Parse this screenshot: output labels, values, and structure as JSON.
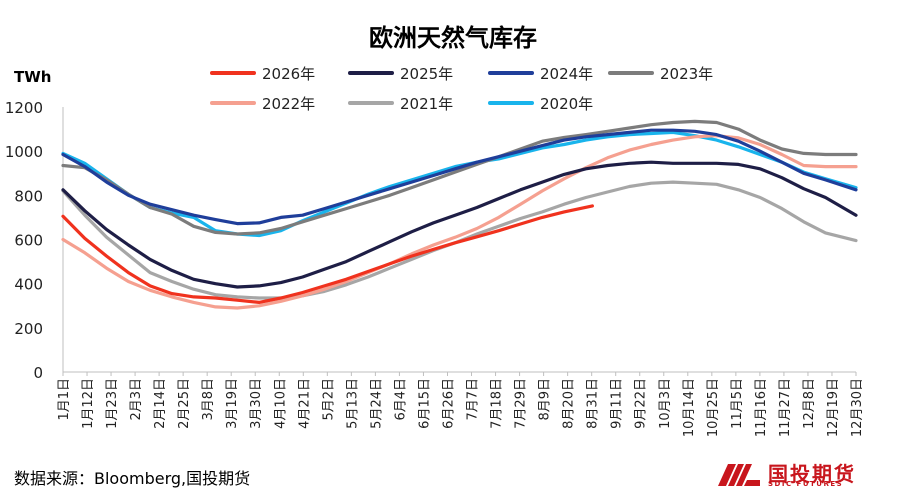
{
  "chart_data": {
    "type": "line",
    "title": "欧洲天然气库存",
    "ylabel": "TWh",
    "ylim": [
      0,
      1200
    ],
    "yticks": [
      0,
      200,
      400,
      600,
      800,
      1000,
      1200
    ],
    "x_tick_labels": [
      "1月1日",
      "1月12日",
      "1月23日",
      "2月3日",
      "2月14日",
      "2月25日",
      "3月8日",
      "3月19日",
      "3月30日",
      "4月10日",
      "4月21日",
      "5月2日",
      "5月13日",
      "5月24日",
      "6月4日",
      "6月15日",
      "6月26日",
      "7月7日",
      "7月18日",
      "7月29日",
      "8月9日",
      "8月20日",
      "8月31日",
      "9月11日",
      "9月22日",
      "10月3日",
      "10月14日",
      "10月25日",
      "11月5日",
      "11月16日",
      "11月27日",
      "12月8日",
      "12月19日",
      "12月30日"
    ],
    "x_domain_days": [
      0,
      364
    ],
    "grid": false,
    "legend_position": "top",
    "series": [
      {
        "name": "2026年",
        "color": "#f0321e",
        "x": [
          0,
          10,
          20,
          30,
          40,
          50,
          60,
          70,
          80,
          90,
          100,
          110,
          120,
          130,
          140,
          150,
          160,
          170,
          180,
          190,
          200,
          210,
          220,
          230,
          243
        ],
        "y": [
          705,
          605,
          525,
          450,
          390,
          355,
          340,
          335,
          325,
          315,
          335,
          360,
          390,
          420,
          455,
          490,
          525,
          555,
          585,
          612,
          640,
          670,
          700,
          725,
          752
        ]
      },
      {
        "name": "2025年",
        "color": "#1e1e46",
        "x": [
          0,
          10,
          20,
          30,
          40,
          50,
          60,
          70,
          80,
          90,
          100,
          110,
          120,
          130,
          140,
          150,
          160,
          170,
          180,
          190,
          200,
          210,
          220,
          230,
          240,
          250,
          260,
          270,
          280,
          290,
          300,
          310,
          320,
          330,
          340,
          350,
          364
        ],
        "y": [
          825,
          730,
          645,
          575,
          510,
          460,
          420,
          400,
          385,
          390,
          405,
          430,
          465,
          500,
          545,
          590,
          635,
          675,
          710,
          745,
          785,
          825,
          860,
          895,
          920,
          935,
          945,
          950,
          945,
          945,
          945,
          940,
          920,
          880,
          830,
          790,
          710
        ]
      },
      {
        "name": "2024年",
        "color": "#1f3e9a",
        "x": [
          0,
          10,
          20,
          30,
          40,
          50,
          60,
          70,
          80,
          90,
          100,
          110,
          120,
          130,
          140,
          150,
          160,
          170,
          180,
          190,
          200,
          210,
          220,
          230,
          240,
          250,
          260,
          270,
          280,
          290,
          300,
          310,
          320,
          330,
          340,
          350,
          364
        ],
        "y": [
          985,
          930,
          860,
          800,
          760,
          735,
          710,
          690,
          672,
          675,
          700,
          710,
          740,
          770,
          800,
          830,
          860,
          890,
          920,
          950,
          975,
          1000,
          1025,
          1050,
          1065,
          1075,
          1085,
          1095,
          1095,
          1090,
          1075,
          1045,
          1000,
          950,
          900,
          870,
          825
        ]
      },
      {
        "name": "2023年",
        "color": "#7c7c7c",
        "x": [
          0,
          10,
          20,
          30,
          40,
          50,
          60,
          70,
          80,
          90,
          100,
          110,
          120,
          130,
          140,
          150,
          160,
          170,
          180,
          190,
          200,
          210,
          220,
          230,
          240,
          250,
          260,
          270,
          280,
          290,
          300,
          310,
          320,
          330,
          340,
          350,
          364
        ],
        "y": [
          935,
          925,
          870,
          805,
          745,
          715,
          660,
          632,
          625,
          630,
          650,
          680,
          710,
          740,
          770,
          800,
          835,
          870,
          905,
          940,
          975,
          1010,
          1045,
          1062,
          1075,
          1090,
          1105,
          1120,
          1130,
          1135,
          1130,
          1100,
          1050,
          1010,
          990,
          985,
          985
        ]
      },
      {
        "name": "2022年",
        "color": "#f5a090",
        "x": [
          0,
          10,
          20,
          30,
          40,
          50,
          60,
          70,
          80,
          90,
          100,
          110,
          120,
          130,
          140,
          150,
          160,
          170,
          180,
          190,
          200,
          210,
          220,
          230,
          240,
          250,
          260,
          270,
          280,
          290,
          300,
          310,
          320,
          330,
          340,
          350,
          364
        ],
        "y": [
          600,
          540,
          470,
          410,
          370,
          340,
          315,
          295,
          290,
          300,
          320,
          345,
          375,
          410,
          450,
          490,
          535,
          575,
          610,
          650,
          700,
          760,
          820,
          875,
          925,
          970,
          1005,
          1030,
          1050,
          1065,
          1070,
          1060,
          1030,
          985,
          935,
          930,
          930
        ]
      },
      {
        "name": "2021年",
        "color": "#a6a6a6",
        "x": [
          0,
          10,
          20,
          30,
          40,
          50,
          60,
          70,
          80,
          90,
          100,
          110,
          120,
          130,
          140,
          150,
          160,
          170,
          180,
          190,
          200,
          210,
          220,
          230,
          240,
          250,
          260,
          270,
          280,
          290,
          300,
          310,
          320,
          330,
          340,
          350,
          364
        ],
        "y": [
          820,
          710,
          610,
          530,
          450,
          410,
          375,
          350,
          340,
          335,
          335,
          345,
          365,
          395,
          430,
          470,
          510,
          550,
          585,
          625,
          660,
          695,
          725,
          760,
          790,
          815,
          840,
          855,
          860,
          855,
          850,
          825,
          790,
          740,
          680,
          630,
          595
        ]
      },
      {
        "name": "2020年",
        "color": "#19b4ec",
        "x": [
          0,
          10,
          20,
          30,
          40,
          50,
          60,
          70,
          80,
          90,
          100,
          110,
          120,
          130,
          140,
          150,
          160,
          170,
          180,
          190,
          200,
          210,
          220,
          230,
          240,
          250,
          260,
          270,
          280,
          290,
          300,
          310,
          320,
          330,
          340,
          350,
          364
        ],
        "y": [
          990,
          945,
          875,
          805,
          745,
          720,
          700,
          640,
          625,
          618,
          640,
          685,
          725,
          765,
          805,
          840,
          870,
          900,
          930,
          950,
          965,
          990,
          1015,
          1030,
          1050,
          1065,
          1075,
          1080,
          1085,
          1070,
          1050,
          1020,
          985,
          950,
          905,
          875,
          835
        ]
      }
    ]
  },
  "source": "数据来源：Bloomberg,国投期货",
  "logo": {
    "name": "国投期货",
    "sub": "SDIC FUTURES",
    "icon": "sdic-logo-icon"
  }
}
